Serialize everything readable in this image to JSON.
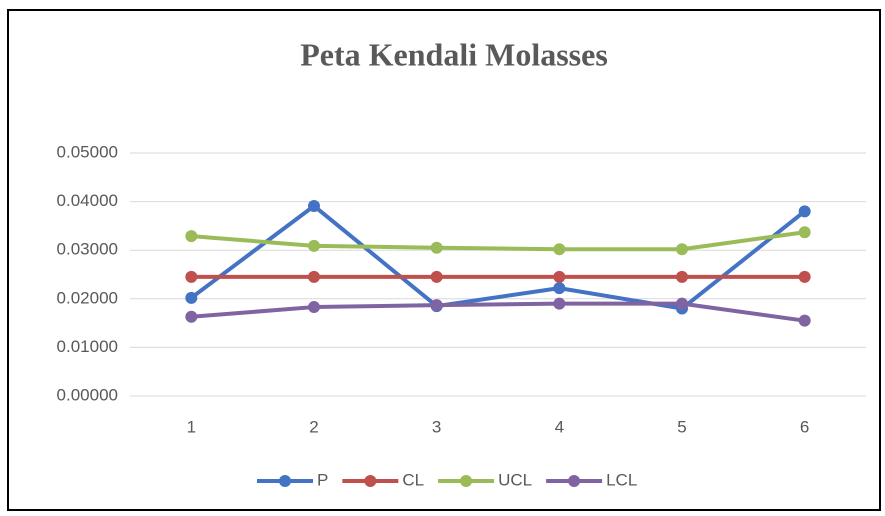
{
  "chart_data": {
    "type": "line",
    "title": "Peta Kendali Molasses",
    "categories": [
      "1",
      "2",
      "3",
      "4",
      "5",
      "6"
    ],
    "series": [
      {
        "name": "P",
        "color": "#4472c4",
        "values": [
          0.0202,
          0.0391,
          0.0185,
          0.0222,
          0.018,
          0.038
        ]
      },
      {
        "name": "CL",
        "color": "#c0504d",
        "values": [
          0.0245,
          0.0245,
          0.0245,
          0.0245,
          0.0245,
          0.0245
        ]
      },
      {
        "name": "UCL",
        "color": "#9bbb59",
        "values": [
          0.0329,
          0.0309,
          0.0305,
          0.0302,
          0.0302,
          0.0337
        ]
      },
      {
        "name": "LCL",
        "color": "#8064a2",
        "values": [
          0.0163,
          0.0183,
          0.0187,
          0.019,
          0.019,
          0.0155
        ]
      }
    ],
    "ylim": [
      0,
      0.05
    ],
    "yticks": [
      {
        "value": 0,
        "label": "0.00000"
      },
      {
        "value": 0.01,
        "label": "0.01000"
      },
      {
        "value": 0.02,
        "label": "0.02000"
      },
      {
        "value": 0.03,
        "label": "0.03000"
      },
      {
        "value": 0.04,
        "label": "0.04000"
      },
      {
        "value": 0.05,
        "label": "0.05000"
      }
    ],
    "grid": true,
    "legend": "bottom"
  }
}
